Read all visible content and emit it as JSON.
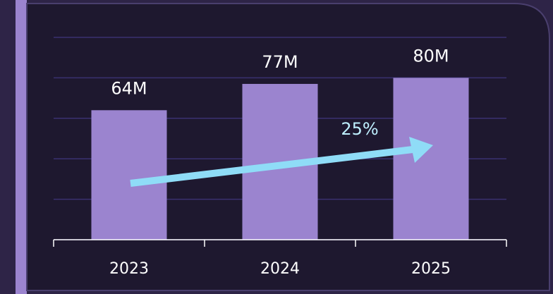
{
  "chart_data": {
    "type": "bar",
    "categories": [
      "2023",
      "2024",
      "2025"
    ],
    "values": [
      64,
      77,
      80
    ],
    "value_labels": [
      "64M",
      "77M",
      "80M"
    ],
    "color": "#9b84cf",
    "ylim": [
      0,
      100
    ],
    "yticks": [
      0,
      20,
      40,
      60,
      80,
      100
    ],
    "grid": true,
    "annotation": "25%"
  }
}
